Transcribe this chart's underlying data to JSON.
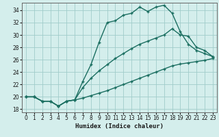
{
  "xlabel": "Humidex (Indice chaleur)",
  "xlim": [
    -0.5,
    23.5
  ],
  "ylim": [
    17.5,
    35.2
  ],
  "xticks": [
    0,
    1,
    2,
    3,
    4,
    5,
    6,
    7,
    8,
    9,
    10,
    11,
    12,
    13,
    14,
    15,
    16,
    17,
    18,
    19,
    20,
    21,
    22,
    23
  ],
  "yticks": [
    18,
    20,
    22,
    24,
    26,
    28,
    30,
    32,
    34
  ],
  "bg_color": "#d4eeec",
  "grid_color": "#a0ccca",
  "line_color": "#1a6e60",
  "curve1_x": [
    0,
    1,
    2,
    3,
    4,
    5,
    6,
    7,
    8,
    9,
    10,
    11,
    12,
    13,
    14,
    15,
    16,
    17,
    18,
    19,
    20,
    21,
    22,
    23
  ],
  "curve1_y": [
    20.0,
    20.0,
    19.3,
    19.3,
    18.5,
    19.3,
    19.5,
    22.5,
    25.2,
    28.8,
    32.0,
    32.3,
    33.2,
    33.5,
    34.5,
    33.8,
    34.5,
    34.8,
    33.5,
    30.5,
    28.5,
    27.5,
    27.0,
    26.5
  ],
  "curve2_x": [
    0,
    1,
    2,
    3,
    4,
    5,
    6,
    7,
    8,
    9,
    10,
    11,
    12,
    13,
    14,
    15,
    16,
    17,
    18,
    19,
    20,
    21,
    22,
    23
  ],
  "curve2_y": [
    20.0,
    20.0,
    19.3,
    19.3,
    18.5,
    19.3,
    19.5,
    21.5,
    23.0,
    24.2,
    25.2,
    26.2,
    27.0,
    27.8,
    28.5,
    29.0,
    29.5,
    30.0,
    31.0,
    30.0,
    29.8,
    28.0,
    27.5,
    26.5
  ],
  "curve3_x": [
    0,
    1,
    2,
    3,
    4,
    5,
    6,
    7,
    8,
    9,
    10,
    11,
    12,
    13,
    14,
    15,
    16,
    17,
    18,
    19,
    20,
    21,
    22,
    23
  ],
  "curve3_y": [
    20.0,
    20.0,
    19.3,
    19.3,
    18.5,
    19.3,
    19.5,
    19.8,
    20.2,
    20.6,
    21.0,
    21.5,
    22.0,
    22.5,
    23.0,
    23.5,
    24.0,
    24.5,
    25.0,
    25.3,
    25.5,
    25.7,
    25.9,
    26.2
  ]
}
